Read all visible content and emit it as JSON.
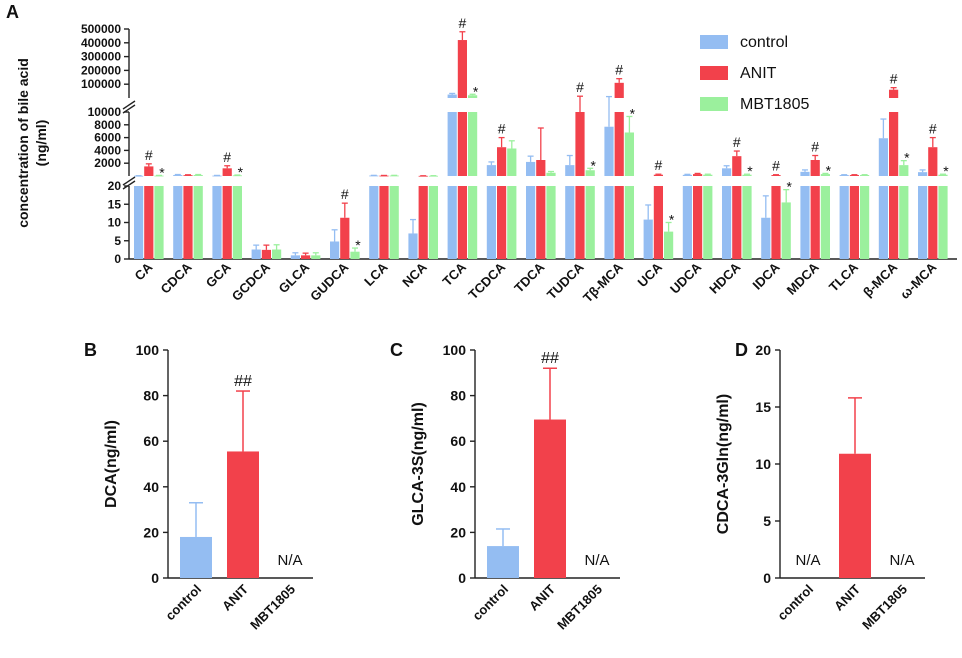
{
  "colors": {
    "control": "#94bdf2",
    "ANIT": "#f2414b",
    "MBT1805": "#9bf09d"
  },
  "chart_data": [
    {
      "panel": "A",
      "type": "bar",
      "title": "",
      "ylabel": "concentration of bile acid\n(ng/ml)",
      "ylabel_lines": [
        "concentration of bile acid",
        "(ng/ml)"
      ],
      "y_axis": "broken, three segments",
      "segments": [
        {
          "range": [
            0,
            20
          ],
          "ticks": [
            "0",
            "5",
            "10",
            "15",
            "20"
          ]
        },
        {
          "range": [
            0,
            10000
          ],
          "ticks": [
            "2000",
            "4000",
            "6000",
            "8000",
            "10000"
          ]
        },
        {
          "range": [
            0,
            500000
          ],
          "ticks": [
            "100000",
            "200000",
            "300000",
            "400000",
            "500000"
          ]
        }
      ],
      "legend": [
        "control",
        "ANIT",
        "MBT1805"
      ],
      "legend_position": "top-right",
      "categories": [
        "CA",
        "CDCA",
        "GCA",
        "GCDCA",
        "GLCA",
        "GUDCA",
        "LCA",
        "NCA",
        "TCA",
        "TCDCA",
        "TDCA",
        "TUDCA",
        "Tβ-MCA",
        "UCA",
        "UDCA",
        "HDCA",
        "IDCA",
        "MDCA",
        "TLCA",
        "β-MCA",
        "ω-MCA"
      ],
      "series": [
        {
          "name": "control",
          "values": [
            30,
            150,
            60,
            2.6,
            1.0,
            4.8,
            70,
            7.0,
            25000,
            1700,
            2200,
            1700,
            7700,
            10.8,
            180,
            1200,
            11.3,
            650,
            150,
            5900,
            600
          ],
          "errors": [
            15,
            80,
            30,
            1.2,
            0.7,
            3.2,
            30,
            3.8,
            8000,
            500,
            900,
            1500,
            2500,
            4.0,
            80,
            400,
            6.0,
            300,
            50,
            3000,
            350
          ]
        },
        {
          "name": "ANIT",
          "values": [
            1500,
            130,
            1200,
            2.5,
            1.0,
            11.3,
            60,
            25,
            420000,
            4500,
            2500,
            10000,
            110000,
            200,
            300,
            3100,
            150,
            2500,
            150,
            60000,
            4500
          ],
          "errors": [
            400,
            60,
            400,
            1.3,
            0.6,
            4.0,
            25,
            10,
            60000,
            1500,
            5000,
            3000,
            30000,
            80,
            100,
            800,
            50,
            700,
            50,
            15000,
            1500
          ]
        },
        {
          "name": "MBT1805",
          "values": [
            60,
            150,
            100,
            2.6,
            1.0,
            2.0,
            70,
            30,
            20000,
            4300,
            500,
            900,
            6800,
            7.5,
            200,
            200,
            15.5,
            300,
            150,
            1700,
            200
          ],
          "errors": [
            30,
            80,
            50,
            1.3,
            0.7,
            1.0,
            30,
            15,
            7000,
            1200,
            200,
            300,
            2500,
            2.5,
            80,
            80,
            3.5,
            100,
            50,
            700,
            80
          ]
        }
      ],
      "annotations": [
        {
          "category": "CA",
          "series": "ANIT",
          "label": "#"
        },
        {
          "category": "CA",
          "series": "MBT1805",
          "label": "*"
        },
        {
          "category": "GCA",
          "series": "ANIT",
          "label": "#"
        },
        {
          "category": "GCA",
          "series": "MBT1805",
          "label": "*"
        },
        {
          "category": "GUDCA",
          "series": "ANIT",
          "label": "#"
        },
        {
          "category": "GUDCA",
          "series": "MBT1805",
          "label": "*"
        },
        {
          "category": "TCA",
          "series": "ANIT",
          "label": "#"
        },
        {
          "category": "TCA",
          "series": "MBT1805",
          "label": "*"
        },
        {
          "category": "TCDCA",
          "series": "ANIT",
          "label": "#"
        },
        {
          "category": "TUDCA",
          "series": "ANIT",
          "label": "#"
        },
        {
          "category": "TUDCA",
          "series": "MBT1805",
          "label": "*"
        },
        {
          "category": "Tβ-MCA",
          "series": "ANIT",
          "label": "#"
        },
        {
          "category": "Tβ-MCA",
          "series": "MBT1805",
          "label": "*"
        },
        {
          "category": "UCA",
          "series": "ANIT",
          "label": "#"
        },
        {
          "category": "UCA",
          "series": "MBT1805",
          "label": "*"
        },
        {
          "category": "HDCA",
          "series": "ANIT",
          "label": "#"
        },
        {
          "category": "HDCA",
          "series": "MBT1805",
          "label": "*"
        },
        {
          "category": "IDCA",
          "series": "ANIT",
          "label": "#"
        },
        {
          "category": "IDCA",
          "series": "MBT1805",
          "label": "*"
        },
        {
          "category": "MDCA",
          "series": "ANIT",
          "label": "#"
        },
        {
          "category": "MDCA",
          "series": "MBT1805",
          "label": "*"
        },
        {
          "category": "β-MCA",
          "series": "ANIT",
          "label": "#"
        },
        {
          "category": "β-MCA",
          "series": "MBT1805",
          "label": "*"
        },
        {
          "category": "ω-MCA",
          "series": "ANIT",
          "label": "#"
        },
        {
          "category": "ω-MCA",
          "series": "MBT1805",
          "label": "*"
        }
      ]
    },
    {
      "panel": "B",
      "type": "bar",
      "ylabel": "DCA(ng/ml)",
      "ylim": [
        0,
        100
      ],
      "yticks": [
        "0",
        "20",
        "40",
        "60",
        "80",
        "100"
      ],
      "categories": [
        "control",
        "ANIT",
        "MBT1805"
      ],
      "values": [
        18,
        55.5,
        null
      ],
      "errors": [
        15,
        26.5,
        null
      ],
      "value_labels": [
        "",
        "",
        "N/A"
      ],
      "annotations": [
        {
          "category": "ANIT",
          "label": "##"
        }
      ]
    },
    {
      "panel": "C",
      "type": "bar",
      "ylabel": "GLCA-3S(ng/ml)",
      "ylim": [
        0,
        100
      ],
      "yticks": [
        "0",
        "20",
        "40",
        "60",
        "80",
        "100"
      ],
      "categories": [
        "control",
        "ANIT",
        "MBT1805"
      ],
      "values": [
        14,
        69.5,
        null
      ],
      "errors": [
        7.5,
        22.5,
        null
      ],
      "value_labels": [
        "",
        "",
        "N/A"
      ],
      "annotations": [
        {
          "category": "ANIT",
          "label": "##"
        }
      ]
    },
    {
      "panel": "D",
      "type": "bar",
      "ylabel": "CDCA-3Gln(ng/ml)",
      "ylim": [
        0,
        20
      ],
      "yticks": [
        "0",
        "5",
        "10",
        "15",
        "20"
      ],
      "categories": [
        "control",
        "ANIT",
        "MBT1805"
      ],
      "values": [
        null,
        10.9,
        null
      ],
      "errors": [
        null,
        4.9,
        null
      ],
      "value_labels": [
        "N/A",
        "",
        "N/A"
      ],
      "annotations": []
    }
  ]
}
